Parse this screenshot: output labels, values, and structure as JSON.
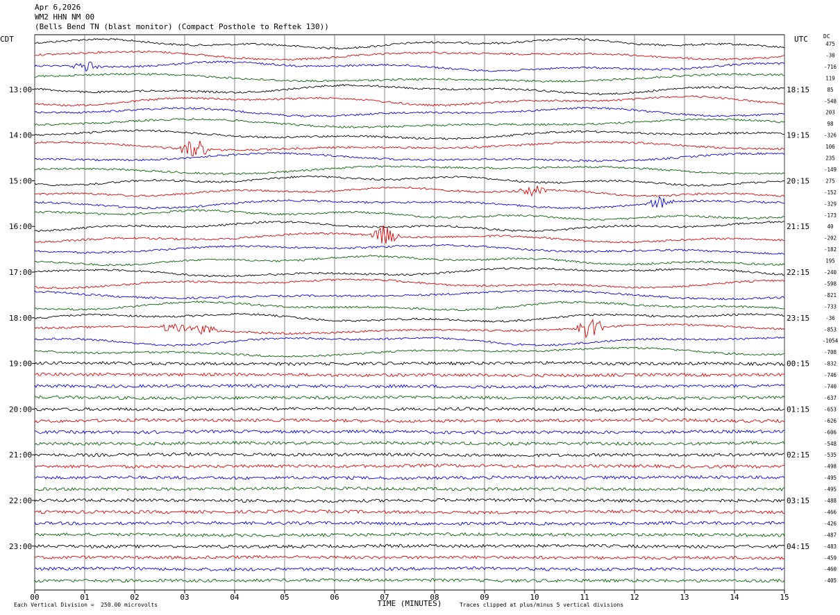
{
  "header": {
    "date": "Apr 6,2026",
    "station": "WM2 HHN NM 00",
    "description": "(Bells Bend TN (blast monitor) (Compact Posthole to Reftek 130))"
  },
  "labels": {
    "left_tz": "CDT",
    "right_tz": "UTC",
    "dc_header": "DC"
  },
  "footer": {
    "scale": "Each Vertical Division =  250.00 microvolts",
    "clip": "Traces clipped at plus/minus 5 vertical divisions"
  },
  "colors": {
    "black": "#000000",
    "red": "#e00000",
    "blue": "#0000e0",
    "green": "#006400",
    "grid": "#000000"
  },
  "chart_data": {
    "type": "line",
    "title": "Apr 6,2026 WM2 HHN NM 00 (Bells Bend TN (blast monitor) (Compact Posthole to Reftek 130))",
    "xlabel": "TIME (MINUTES)",
    "xlim": [
      0,
      15
    ],
    "x_ticks": [
      "00",
      "01",
      "02",
      "03",
      "04",
      "05",
      "06",
      "07",
      "08",
      "09",
      "10",
      "11",
      "12",
      "13",
      "14",
      "15"
    ],
    "trace_count": 48,
    "trace_minutes": 15,
    "trace_color_cycle": [
      "black",
      "red",
      "blue",
      "green"
    ],
    "left_hour_labels": [
      "13:00",
      "14:00",
      "15:00",
      "16:00",
      "17:00",
      "18:00",
      "19:00",
      "20:00",
      "21:00",
      "22:00",
      "23:00"
    ],
    "right_hour_labels": [
      "18:15",
      "19:15",
      "20:15",
      "21:15",
      "22:15",
      "23:15",
      "00:15",
      "01:15",
      "02:15",
      "03:15",
      "04:15"
    ],
    "dc_offsets": [
      475,
      -30,
      -716,
      119,
      85,
      -548,
      203,
      98,
      -326,
      106,
      235,
      -149,
      275,
      -152,
      -329,
      -173,
      40,
      -202,
      -182,
      195,
      -240,
      -598,
      -821,
      -733,
      -36,
      -853,
      -1054,
      -708,
      -832,
      -746,
      -740,
      -637,
      -653,
      -626,
      -606,
      -548,
      -535,
      -498,
      -495,
      -495,
      -488,
      -466,
      -426,
      -487,
      -483,
      -459,
      -460,
      -405
    ],
    "events": [
      {
        "trace": 2,
        "minute": 1.0,
        "note": "burst"
      },
      {
        "trace": 9,
        "minute": 3.2,
        "note": "large burst"
      },
      {
        "trace": 13,
        "minute": 10.0,
        "note": "burst"
      },
      {
        "trace": 14,
        "minute": 12.5,
        "note": "burst"
      },
      {
        "trace": 17,
        "minute": 7.0,
        "note": "spike"
      },
      {
        "trace": 25,
        "minute": 2.8,
        "note": "burst"
      },
      {
        "trace": 25,
        "minute": 3.4,
        "note": "burst"
      },
      {
        "trace": 25,
        "minute": 11.1,
        "note": "large burst"
      }
    ],
    "scale_microvolts_per_division": 250.0,
    "clip_divisions": 5
  }
}
